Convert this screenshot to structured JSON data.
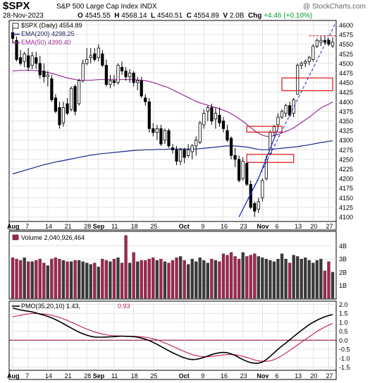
{
  "header": {
    "symbol": "$SPX",
    "name": "S&P 500 Large Cap Index  INDX",
    "brand": "@ StockCharts.com",
    "date": "28-Nov-2023",
    "open_label": "O",
    "open": "4545.55",
    "high_label": "H",
    "high": "4568.14",
    "low_label": "L",
    "low": "4540.51",
    "close_label": "C",
    "close": "4554.89",
    "volume_label": "V",
    "volume": "2.0B",
    "chg_label": "Chg",
    "chg": "+4.46 (+0.10%)"
  },
  "colors": {
    "up": "#ffffff",
    "down": "#000000",
    "candle_edge": "#000000",
    "ema200": "#1a2a8c",
    "ema50": "#9a2a9a",
    "vol_down": "#a3264f",
    "vol_up": "#3a3a3a",
    "pmo": "#000000",
    "pmo_signal": "#c2185b",
    "annotation_box": "#e22222",
    "trend": "#2233cc",
    "grid": "#d8d8d8",
    "panel_bg": "#ffffff",
    "zero_line": "#8b1a3a"
  },
  "chart_data": [
    {
      "type": "candlestick",
      "legend": [
        {
          "key": "price",
          "label": "$SPX (Daily) 4554.89"
        },
        {
          "key": "ema200",
          "label": "EMA(200) 4298.25"
        },
        {
          "key": "ema50",
          "label": "EMA(50) 4399.40"
        }
      ],
      "ylim": [
        4090,
        4610
      ],
      "y_ticks": [
        4100,
        4125,
        4150,
        4175,
        4200,
        4225,
        4250,
        4275,
        4300,
        4325,
        4350,
        4375,
        4400,
        4425,
        4450,
        4475,
        4500,
        4525,
        4550,
        4575,
        4600
      ],
      "x_ticks": [
        "Aug",
        "7",
        "14",
        "21",
        "28",
        "Sep",
        "11",
        "18",
        "25",
        "Oct",
        "9",
        "16",
        "23",
        "Nov",
        "6",
        "13",
        "20",
        "27"
      ],
      "candles": [
        {
          "o": 4580,
          "h": 4600,
          "l": 4555,
          "c": 4565
        },
        {
          "o": 4560,
          "h": 4570,
          "l": 4505,
          "c": 4510
        },
        {
          "o": 4515,
          "h": 4535,
          "l": 4495,
          "c": 4500
        },
        {
          "o": 4505,
          "h": 4530,
          "l": 4490,
          "c": 4525
        },
        {
          "o": 4520,
          "h": 4540,
          "l": 4480,
          "c": 4490
        },
        {
          "o": 4495,
          "h": 4530,
          "l": 4485,
          "c": 4520
        },
        {
          "o": 4515,
          "h": 4530,
          "l": 4485,
          "c": 4500
        },
        {
          "o": 4500,
          "h": 4520,
          "l": 4460,
          "c": 4470
        },
        {
          "o": 4480,
          "h": 4500,
          "l": 4450,
          "c": 4465
        },
        {
          "o": 4465,
          "h": 4480,
          "l": 4440,
          "c": 4470
        },
        {
          "o": 4460,
          "h": 4470,
          "l": 4400,
          "c": 4405
        },
        {
          "o": 4410,
          "h": 4420,
          "l": 4370,
          "c": 4375
        },
        {
          "o": 4385,
          "h": 4400,
          "l": 4330,
          "c": 4340
        },
        {
          "o": 4345,
          "h": 4400,
          "l": 4335,
          "c": 4385
        },
        {
          "o": 4395,
          "h": 4410,
          "l": 4365,
          "c": 4370
        },
        {
          "o": 4380,
          "h": 4440,
          "l": 4375,
          "c": 4435
        },
        {
          "o": 4440,
          "h": 4445,
          "l": 4365,
          "c": 4375
        },
        {
          "o": 4395,
          "h": 4460,
          "l": 4390,
          "c": 4455
        },
        {
          "o": 4455,
          "h": 4510,
          "l": 4450,
          "c": 4500
        },
        {
          "o": 4500,
          "h": 4540,
          "l": 4495,
          "c": 4510
        },
        {
          "o": 4515,
          "h": 4540,
          "l": 4500,
          "c": 4520
        },
        {
          "o": 4525,
          "h": 4540,
          "l": 4505,
          "c": 4510
        },
        {
          "o": 4515,
          "h": 4550,
          "l": 4505,
          "c": 4540
        },
        {
          "o": 4525,
          "h": 4535,
          "l": 4490,
          "c": 4495
        },
        {
          "o": 4495,
          "h": 4510,
          "l": 4440,
          "c": 4445
        },
        {
          "o": 4445,
          "h": 4470,
          "l": 4435,
          "c": 4455
        },
        {
          "o": 4455,
          "h": 4470,
          "l": 4440,
          "c": 4450
        },
        {
          "o": 4450,
          "h": 4500,
          "l": 4445,
          "c": 4495
        },
        {
          "o": 4490,
          "h": 4505,
          "l": 4470,
          "c": 4480
        },
        {
          "o": 4480,
          "h": 4490,
          "l": 4455,
          "c": 4465
        },
        {
          "o": 4465,
          "h": 4485,
          "l": 4450,
          "c": 4475
        },
        {
          "o": 4475,
          "h": 4480,
          "l": 4440,
          "c": 4450
        },
        {
          "o": 4450,
          "h": 4465,
          "l": 4430,
          "c": 4455
        },
        {
          "o": 4455,
          "h": 4465,
          "l": 4410,
          "c": 4415
        },
        {
          "o": 4410,
          "h": 4420,
          "l": 4390,
          "c": 4400
        },
        {
          "o": 4400,
          "h": 4410,
          "l": 4320,
          "c": 4330
        },
        {
          "o": 4330,
          "h": 4345,
          "l": 4310,
          "c": 4320
        },
        {
          "o": 4320,
          "h": 4340,
          "l": 4300,
          "c": 4330
        },
        {
          "o": 4330,
          "h": 4340,
          "l": 4285,
          "c": 4290
        },
        {
          "o": 4300,
          "h": 4330,
          "l": 4290,
          "c": 4325
        },
        {
          "o": 4325,
          "h": 4330,
          "l": 4280,
          "c": 4285
        },
        {
          "o": 4280,
          "h": 4290,
          "l": 4265,
          "c": 4275
        },
        {
          "o": 4275,
          "h": 4285,
          "l": 4235,
          "c": 4245
        },
        {
          "o": 4245,
          "h": 4280,
          "l": 4235,
          "c": 4275
        },
        {
          "o": 4275,
          "h": 4280,
          "l": 4240,
          "c": 4255
        },
        {
          "o": 4260,
          "h": 4290,
          "l": 4255,
          "c": 4275
        },
        {
          "o": 4270,
          "h": 4290,
          "l": 4250,
          "c": 4285
        },
        {
          "o": 4285,
          "h": 4310,
          "l": 4260,
          "c": 4300
        },
        {
          "o": 4295,
          "h": 4350,
          "l": 4290,
          "c": 4345
        },
        {
          "o": 4340,
          "h": 4380,
          "l": 4330,
          "c": 4370
        },
        {
          "o": 4375,
          "h": 4390,
          "l": 4350,
          "c": 4385
        },
        {
          "o": 4385,
          "h": 4395,
          "l": 4340,
          "c": 4350
        },
        {
          "o": 4355,
          "h": 4385,
          "l": 4330,
          "c": 4370
        },
        {
          "o": 4365,
          "h": 4385,
          "l": 4335,
          "c": 4345
        },
        {
          "o": 4350,
          "h": 4360,
          "l": 4320,
          "c": 4330
        },
        {
          "o": 4325,
          "h": 4340,
          "l": 4295,
          "c": 4300
        },
        {
          "o": 4305,
          "h": 4310,
          "l": 4250,
          "c": 4260
        },
        {
          "o": 4260,
          "h": 4280,
          "l": 4230,
          "c": 4250
        },
        {
          "o": 4250,
          "h": 4260,
          "l": 4190,
          "c": 4195
        },
        {
          "o": 4200,
          "h": 4255,
          "l": 4195,
          "c": 4245
        },
        {
          "o": 4240,
          "h": 4245,
          "l": 4180,
          "c": 4185
        },
        {
          "o": 4185,
          "h": 4195,
          "l": 4120,
          "c": 4125
        },
        {
          "o": 4135,
          "h": 4140,
          "l": 4100,
          "c": 4115
        },
        {
          "o": 4120,
          "h": 4150,
          "l": 4110,
          "c": 4140
        },
        {
          "o": 4150,
          "h": 4200,
          "l": 4140,
          "c": 4195
        },
        {
          "o": 4200,
          "h": 4260,
          "l": 4195,
          "c": 4250
        },
        {
          "o": 4265,
          "h": 4325,
          "l": 4260,
          "c": 4320
        },
        {
          "o": 4320,
          "h": 4340,
          "l": 4310,
          "c": 4335
        },
        {
          "o": 4340,
          "h": 4370,
          "l": 4330,
          "c": 4360
        },
        {
          "o": 4360,
          "h": 4380,
          "l": 4355,
          "c": 4375
        },
        {
          "o": 4370,
          "h": 4395,
          "l": 4360,
          "c": 4390
        },
        {
          "o": 4390,
          "h": 4400,
          "l": 4360,
          "c": 4365
        },
        {
          "o": 4370,
          "h": 4410,
          "l": 4360,
          "c": 4405
        },
        {
          "o": 4420,
          "h": 4500,
          "l": 4420,
          "c": 4495
        },
        {
          "o": 4495,
          "h": 4505,
          "l": 4485,
          "c": 4500
        },
        {
          "o": 4500,
          "h": 4510,
          "l": 4490,
          "c": 4505
        },
        {
          "o": 4505,
          "h": 4520,
          "l": 4495,
          "c": 4515
        },
        {
          "o": 4510,
          "h": 4550,
          "l": 4505,
          "c": 4545
        },
        {
          "o": 4545,
          "h": 4565,
          "l": 4540,
          "c": 4560
        },
        {
          "o": 4555,
          "h": 4570,
          "l": 4545,
          "c": 4560
        },
        {
          "o": 4560,
          "h": 4572,
          "l": 4548,
          "c": 4555
        },
        {
          "o": 4560,
          "h": 4565,
          "l": 4545,
          "c": 4550
        },
        {
          "o": 4545.55,
          "h": 4568.14,
          "l": 4540.51,
          "c": 4554.89
        }
      ],
      "ema200": [
        4212,
        4215,
        4218,
        4221,
        4224,
        4227,
        4230,
        4233,
        4236,
        4238,
        4241,
        4243,
        4245,
        4247,
        4249,
        4251,
        4253,
        4255,
        4257,
        4259,
        4261,
        4262,
        4264,
        4265,
        4266,
        4267,
        4268,
        4269,
        4270,
        4271,
        4272,
        4273,
        4274,
        4274,
        4275,
        4275,
        4275,
        4276,
        4276,
        4276,
        4277,
        4277,
        4277,
        4277,
        4277,
        4277,
        4277,
        4277,
        4278,
        4279,
        4280,
        4281,
        4282,
        4283,
        4284,
        4285,
        4285,
        4285,
        4284,
        4283,
        4282,
        4280,
        4278,
        4276,
        4275,
        4275,
        4276,
        4277,
        4278,
        4279,
        4280,
        4281,
        4282,
        4283,
        4285,
        4286,
        4288,
        4290,
        4292,
        4294,
        4295,
        4297,
        4298.25
      ],
      "ema50": [
        4480,
        4481,
        4482,
        4482,
        4482,
        4482,
        4481,
        4480,
        4478,
        4476,
        4474,
        4471,
        4468,
        4465,
        4462,
        4460,
        4458,
        4456,
        4456,
        4456,
        4456,
        4457,
        4458,
        4458,
        4458,
        4458,
        4458,
        4458,
        4458,
        4458,
        4458,
        4458,
        4457,
        4456,
        4455,
        4453,
        4450,
        4447,
        4443,
        4440,
        4436,
        4431,
        4426,
        4421,
        4416,
        4411,
        4406,
        4401,
        4397,
        4394,
        4391,
        4388,
        4385,
        4382,
        4378,
        4374,
        4369,
        4363,
        4356,
        4349,
        4341,
        4333,
        4325,
        4318,
        4313,
        4310,
        4310,
        4312,
        4315,
        4319,
        4323,
        4327,
        4332,
        4339,
        4346,
        4353,
        4360,
        4368,
        4376,
        4384,
        4389,
        4394,
        4399.4
      ],
      "annotations": {
        "boxes": [
          {
            "i0": 60,
            "i1": 72,
            "y0": 4242,
            "y1": 4263
          },
          {
            "i0": 60,
            "i1": 69,
            "y0": 4321,
            "y1": 4336
          },
          {
            "i0": 69,
            "i1": 82,
            "y0": 4429,
            "y1": 4462
          }
        ],
        "trend_solid": [
          {
            "i": 58,
            "y": 4100
          },
          {
            "i": 63,
            "y": 4200
          },
          {
            "i": 68,
            "y": 4330
          }
        ],
        "trend_dashed": [
          {
            "i": 58,
            "y": 4100
          },
          {
            "i": 83,
            "y": 4610
          }
        ],
        "top_dashed": [
          {
            "i0": 76,
            "i1": 83,
            "y": 4572
          }
        ]
      }
    },
    {
      "type": "bar",
      "title": "Volume 2,040,926,464",
      "ylim": [
        0,
        5
      ],
      "y_ticks": [
        "1B",
        "2B",
        "3B",
        "4B"
      ],
      "values": [
        3.1,
        3.0,
        2.9,
        3.1,
        2.8,
        2.8,
        2.9,
        3.0,
        2.7,
        2.5,
        3.0,
        3.1,
        3.0,
        2.9,
        2.8,
        2.8,
        2.9,
        2.9,
        2.8,
        2.7,
        2.6,
        2.7,
        2.4,
        3.0,
        2.9,
        2.8,
        3.0,
        3.1,
        2.7,
        4.8,
        2.7,
        3.5,
        2.8,
        2.9,
        2.9,
        3.0,
        3.1,
        2.9,
        3.0,
        2.8,
        2.7,
        2.9,
        3.1,
        3.2,
        2.9,
        2.6,
        3.0,
        2.8,
        3.1,
        2.9,
        2.7,
        3.0,
        2.9,
        2.8,
        3.4,
        3.3,
        3.5,
        3.2,
        3.0,
        3.5,
        3.2,
        3.3,
        3.4,
        3.2,
        3.1,
        3.0,
        2.9,
        2.8,
        3.0,
        3.4,
        3.0,
        2.7,
        3.3,
        3.2,
        3.0,
        3.1,
        2.9,
        2.7,
        2.9,
        3.0,
        2.1,
        2.8,
        2.0
      ]
    },
    {
      "type": "line",
      "legend": [
        {
          "key": "pmo",
          "label": "PMO(35,20,10) 1.43,"
        },
        {
          "key": "signal",
          "label": "0.93"
        }
      ],
      "ylim": [
        -1.6,
        2.1
      ],
      "y_ticks": [
        -1.5,
        -1.0,
        -0.5,
        0.0,
        0.5,
        1.0,
        1.5,
        2.0
      ],
      "pmo": [
        1.8,
        1.74,
        1.69,
        1.65,
        1.62,
        1.58,
        1.52,
        1.46,
        1.4,
        1.33,
        1.25,
        1.15,
        1.04,
        0.92,
        0.8,
        0.68,
        0.56,
        0.45,
        0.36,
        0.28,
        0.22,
        0.18,
        0.17,
        0.17,
        0.18,
        0.19,
        0.2,
        0.22,
        0.23,
        0.22,
        0.21,
        0.2,
        0.17,
        0.12,
        0.06,
        -0.02,
        -0.12,
        -0.23,
        -0.35,
        -0.47,
        -0.59,
        -0.7,
        -0.8,
        -0.9,
        -0.98,
        -1.05,
        -1.08,
        -1.07,
        -1.02,
        -0.96,
        -0.88,
        -0.8,
        -0.74,
        -0.7,
        -0.68,
        -0.7,
        -0.76,
        -0.85,
        -0.97,
        -1.08,
        -1.18,
        -1.25,
        -1.28,
        -1.28,
        -1.22,
        -1.08,
        -0.9,
        -0.7,
        -0.5,
        -0.32,
        -0.16,
        0.02,
        0.2,
        0.38,
        0.55,
        0.71,
        0.87,
        1.0,
        1.12,
        1.22,
        1.31,
        1.38,
        1.43
      ],
      "signal": [
        1.3,
        1.35,
        1.4,
        1.44,
        1.47,
        1.49,
        1.49,
        1.48,
        1.46,
        1.43,
        1.39,
        1.33,
        1.27,
        1.19,
        1.1,
        1.01,
        0.91,
        0.81,
        0.71,
        0.62,
        0.54,
        0.46,
        0.4,
        0.34,
        0.3,
        0.27,
        0.25,
        0.24,
        0.23,
        0.23,
        0.22,
        0.22,
        0.21,
        0.19,
        0.17,
        0.13,
        0.08,
        0.02,
        -0.06,
        -0.15,
        -0.24,
        -0.34,
        -0.44,
        -0.54,
        -0.63,
        -0.72,
        -0.8,
        -0.86,
        -0.9,
        -0.92,
        -0.92,
        -0.9,
        -0.88,
        -0.85,
        -0.82,
        -0.8,
        -0.8,
        -0.81,
        -0.85,
        -0.9,
        -0.96,
        -1.03,
        -1.1,
        -1.15,
        -1.18,
        -1.18,
        -1.15,
        -1.08,
        -0.98,
        -0.86,
        -0.72,
        -0.57,
        -0.42,
        -0.26,
        -0.11,
        0.04,
        0.19,
        0.34,
        0.49,
        0.62,
        0.74,
        0.85,
        0.93
      ]
    }
  ]
}
